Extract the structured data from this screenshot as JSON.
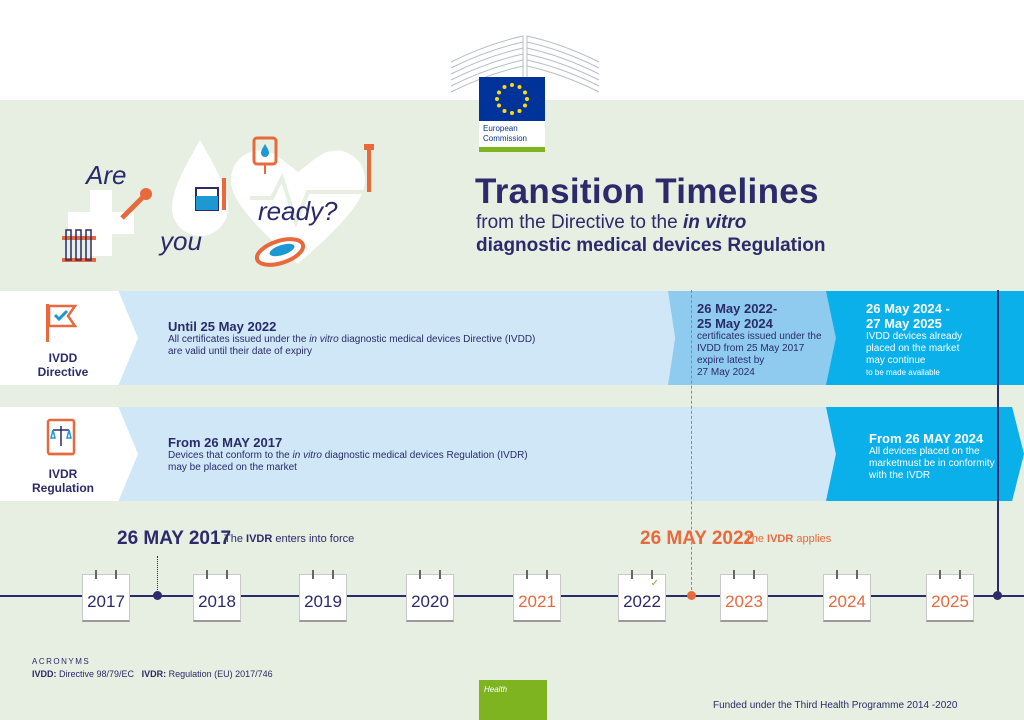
{
  "logo": {
    "org_line1": "European",
    "org_line2": "Commission"
  },
  "illustration": {
    "word1": "Are",
    "word2": "you",
    "word3": "ready?"
  },
  "title": {
    "main": "Transition Timelines",
    "sub1_pre": "from the Directive to the ",
    "sub1_em": "in vitro",
    "sub2": "diagnostic medical devices Regulation"
  },
  "ivdd_row": {
    "label_line1": "IVDD",
    "label_line2": "Directive",
    "band1": {
      "heading": "Until 25 May 2022",
      "text_pre": "All certificates issued under the ",
      "text_em": "in vitro",
      "text_post": " diagnostic medical devices Directive (IVDD)",
      "text_line2": "are valid until their date of expiry"
    },
    "band2": {
      "heading1": "26 May 2022-",
      "heading2": "25 May 2024",
      "line1": "certificates issued under the",
      "line2": "IVDD from 25 May 2017",
      "line3": "expire latest by",
      "line4": "27 May 2024"
    },
    "band3": {
      "heading1": "26 May 2024 -",
      "heading2": "27 May 2025",
      "line1": "IVDD devices already",
      "line2": "placed on the market",
      "line3": "may continue",
      "line4": "to be made available"
    }
  },
  "ivdr_row": {
    "label_line1": "IVDR",
    "label_line2": "Regulation",
    "band1": {
      "heading": "From 26 MAY 2017",
      "text_pre": "Devices that conform to the ",
      "text_em": "in vitro",
      "text_post": " diagnostic medical devices Regulation (IVDR)",
      "text_line2": "may be placed on the market"
    },
    "band2": {
      "heading": "From 26 MAY 2024",
      "line1": "All devices placed on the",
      "line2": "marketmust be in conformity",
      "line3": "with the IVDR"
    }
  },
  "milestones": {
    "m1_date": "26 MAY 2017",
    "m1_pre": "The ",
    "m1_bold": "IVDR",
    "m1_post": " enters into force",
    "m2_date": "26 MAY 2022",
    "m2_pre": "The ",
    "m2_bold": "IVDR",
    "m2_post": " applies"
  },
  "years": [
    "2017",
    "2018",
    "2019",
    "2020",
    "2021",
    "2022",
    "2023",
    "2024",
    "2025"
  ],
  "acronyms": {
    "heading": "ACRONYMS",
    "a1_term": "IVDD:",
    "a1_def": " Directive 98/79/EC",
    "a2_term": "IVDR:",
    "a2_def": " Regulation (EU) 2017/746"
  },
  "footer": {
    "health": "Health",
    "funded": "Funded under the Third Health Programme 2014 -2020"
  },
  "colors": {
    "navy": "#2b2a6b",
    "orange": "#e8693c",
    "light_blue": "#cfe7f6",
    "mid_blue": "#8ecbef",
    "bright_blue": "#0ab0ea",
    "green": "#7db41f",
    "pale_green": "#e6efe1"
  }
}
